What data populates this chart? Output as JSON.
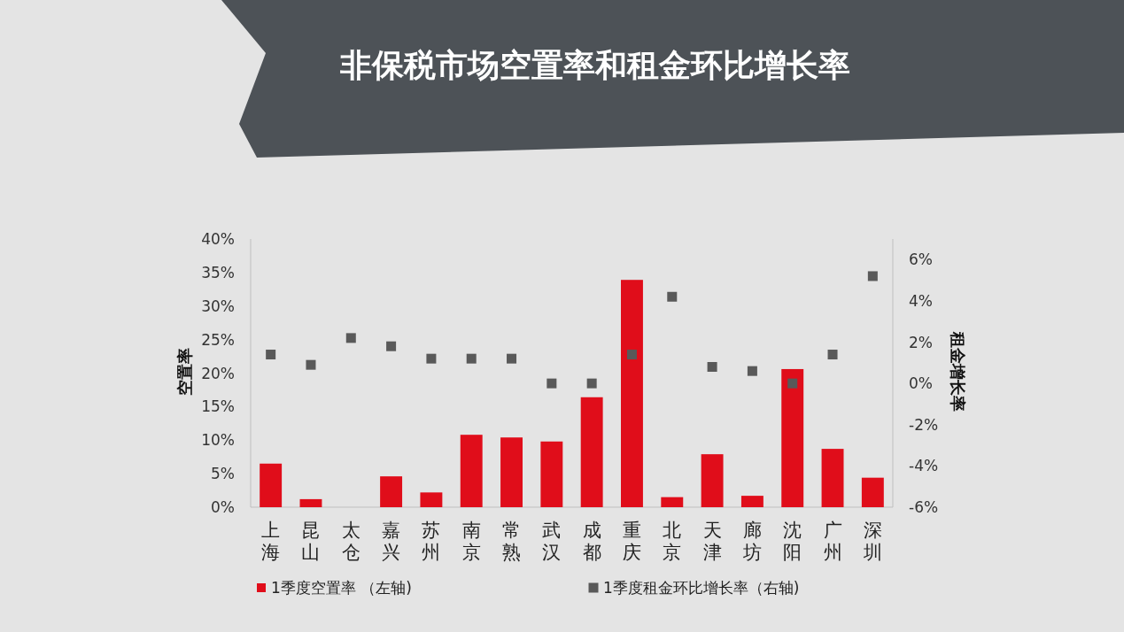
{
  "chart_data": {
    "type": "bar",
    "title": "非保税市场空置率和租金环比增长率",
    "ylabel": "空置率",
    "y2label": "租金增长率",
    "categories": [
      "上海",
      "昆山",
      "太仓",
      "嘉兴",
      "苏州",
      "南京",
      "常熟",
      "武汉",
      "成都",
      "重庆",
      "北京",
      "天津",
      "廊坊",
      "沈阳",
      "广州",
      "深圳"
    ],
    "series": [
      {
        "name": "1季度空置率 （左轴)",
        "color": "#e00d1a",
        "values": [
          6.5,
          1.2,
          0,
          4.6,
          2.2,
          10.8,
          10.4,
          9.8,
          16.4,
          33.9,
          1.5,
          7.9,
          1.7,
          20.6,
          8.7,
          4.4
        ]
      },
      {
        "name": "1季度租金环比增长率（右轴)",
        "type": "scatter",
        "axis": "y2",
        "marker": "square",
        "color": "#595959",
        "values": [
          1.4,
          0.9,
          2.2,
          1.8,
          1.2,
          1.2,
          1.2,
          0,
          0,
          1.4,
          4.2,
          0.8,
          0.6,
          0,
          1.4,
          5.2
        ]
      }
    ],
    "ylim": [
      0,
      40
    ],
    "yticks": [
      {
        "value": 0,
        "label": "0%"
      },
      {
        "value": 5,
        "label": "5%"
      },
      {
        "value": 10,
        "label": "10%"
      },
      {
        "value": 15,
        "label": "15%"
      },
      {
        "value": 20,
        "label": "20%"
      },
      {
        "value": 25,
        "label": "25%"
      },
      {
        "value": 30,
        "label": "30%"
      },
      {
        "value": 35,
        "label": "35%"
      },
      {
        "value": 40,
        "label": "40%"
      }
    ],
    "y2lim": [
      -6,
      7
    ],
    "y2ticks": [
      {
        "value": -6,
        "label": "-6%"
      },
      {
        "value": -4,
        "label": "-4%"
      },
      {
        "value": -2,
        "label": "-2%"
      },
      {
        "value": 0,
        "label": "0%"
      },
      {
        "value": 2,
        "label": "2%"
      },
      {
        "value": 4,
        "label": "4%"
      },
      {
        "value": 6,
        "label": "6%"
      }
    ],
    "legend": "bottom"
  }
}
